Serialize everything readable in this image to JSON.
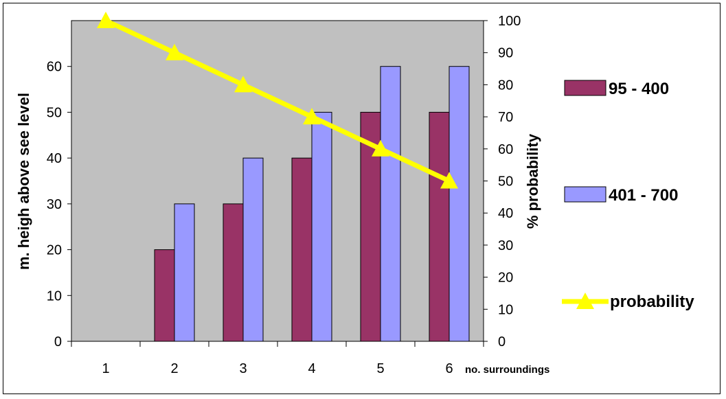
{
  "chart_data": {
    "type": "bar",
    "categories": [
      "1",
      "2",
      "3",
      "4",
      "5",
      "6"
    ],
    "series": [
      {
        "name": "95 - 400",
        "type": "bar",
        "axis": "left",
        "color": "#993366",
        "values": [
          0,
          20,
          30,
          40,
          50,
          50
        ]
      },
      {
        "name": "401 - 700",
        "type": "bar",
        "axis": "left",
        "color": "#9999FF",
        "values": [
          0,
          30,
          40,
          50,
          60,
          60
        ]
      },
      {
        "name": "probability",
        "type": "line",
        "axis": "right",
        "color": "#FFFF00",
        "marker": "triangle",
        "values": [
          100,
          90,
          80,
          70,
          60,
          50
        ]
      }
    ],
    "xlabel": "no. surroundings",
    "ylabel": "m. heigh above see level",
    "y2label": "% probability",
    "ylim": [
      0,
      70
    ],
    "y2lim": [
      0,
      100
    ],
    "yticks": [
      "0",
      "10",
      "20",
      "30",
      "40",
      "50",
      "60"
    ],
    "y2ticks": [
      "0",
      "10",
      "20",
      "30",
      "40",
      "50",
      "60",
      "70",
      "80",
      "90",
      "100"
    ],
    "plot_background": "#C0C0C0",
    "grid": false,
    "legend_position": "right"
  }
}
